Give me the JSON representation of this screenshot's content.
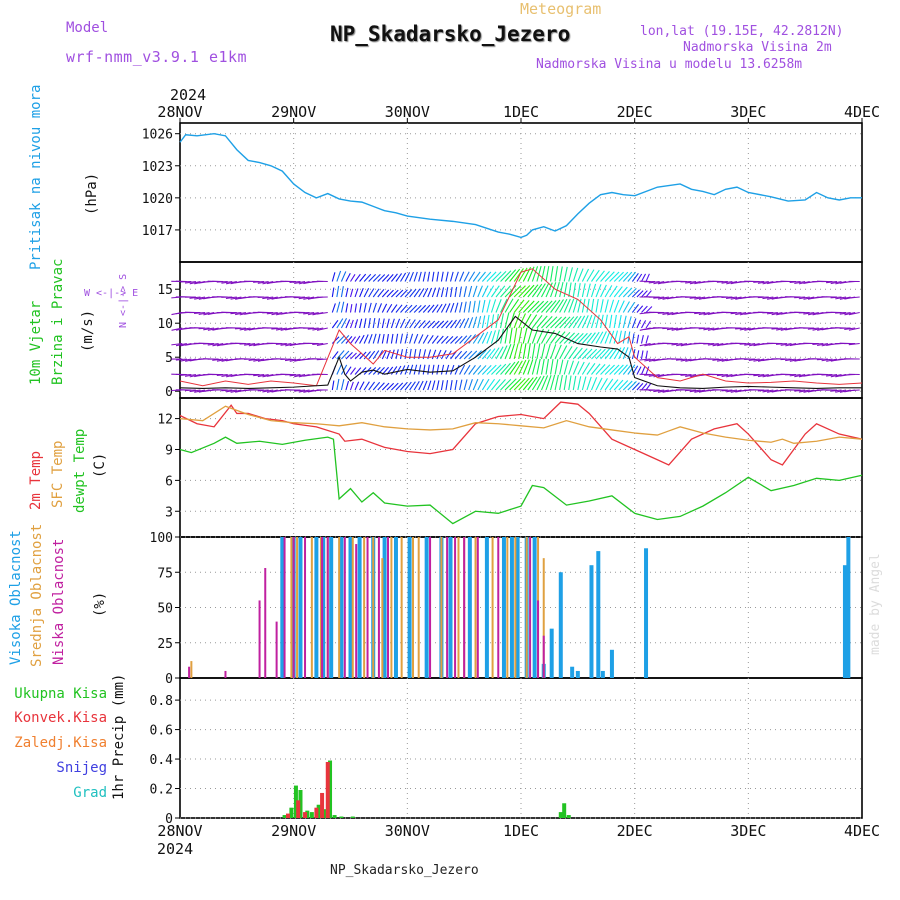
{
  "header": {
    "model_label": "Model",
    "model_name": "wrf-nmm_v3.9.1 e1km",
    "meteogram_label": "Meteogram",
    "station_title": "NP_Skadarsko_Jezero",
    "lonlat": "lon,lat (19.15E, 42.2812N)",
    "altitude": "Nadmorska Visina 2m",
    "model_altitude": "Nadmorska Visina u modelu 13.6258m",
    "footer_station": "NP_Skadarsko_Jezero",
    "watermark": "made by Angel"
  },
  "time_axis": {
    "top_year": "2024",
    "bottom_year": "2024",
    "labels": [
      "28NOV",
      "29NOV",
      "30NOV",
      "1DEC",
      "2DEC",
      "3DEC",
      "4DEC"
    ]
  },
  "panels": {
    "pressure": {
      "side_label": "Pritisak na nivou mora",
      "unit": "(hPa)"
    },
    "wind": {
      "side_label_1": "10m Vjetar",
      "side_label_2": "Brzina i Pravac",
      "unit": "(m/s)",
      "compass": "W <-|-> E",
      "compass_v": "N <-|-> S"
    },
    "temp": {
      "label_2m": "2m Temp",
      "label_sfc": "SFC Temp",
      "label_dew": "dewpt Temp",
      "unit": "(C)"
    },
    "cloud": {
      "label_high": "Visoka Oblacnost",
      "label_mid": "Srednja Oblacnost",
      "label_low": "Niska Oblacnost",
      "unit": "(%)"
    },
    "precip": {
      "legend": [
        "Ukupna Kisa",
        "Konvek.Kisa",
        "Zaledj.Kisa",
        "Snijeg",
        "Grad"
      ],
      "unit": "1hr Precip (mm)"
    }
  },
  "colors": {
    "pressure": "#1ea0e6",
    "temp2m": "#e8343c",
    "sfc": "#e0a040",
    "dew": "#22c322",
    "high": "#1ea0e6",
    "mid": "#e0a040",
    "low": "#c020a0",
    "total": "#22c322",
    "conv": "#e8343c",
    "frz": "#f08030",
    "snow": "#4040e0",
    "hail": "#20c0c0",
    "purple_text": "#a050e0",
    "meteogram_text": "#e8c070"
  },
  "chart_data": [
    {
      "type": "line",
      "title": "Pritisak na nivou mora",
      "ylabel": "(hPa)",
      "ylim": [
        1014,
        1027
      ],
      "yticks": [
        1017,
        1020,
        1023,
        1026
      ],
      "xlim_days": [
        0,
        6
      ],
      "series": [
        {
          "name": "Pritisak na nivou mora",
          "x": [
            0,
            0.05,
            0.15,
            0.3,
            0.4,
            0.5,
            0.6,
            0.7,
            0.8,
            0.9,
            1.0,
            1.1,
            1.2,
            1.3,
            1.4,
            1.5,
            1.6,
            1.7,
            1.8,
            1.9,
            2.0,
            2.2,
            2.4,
            2.6,
            2.8,
            2.9,
            3.0,
            3.05,
            3.1,
            3.2,
            3.3,
            3.4,
            3.5,
            3.6,
            3.7,
            3.8,
            3.9,
            4.0,
            4.2,
            4.4,
            4.5,
            4.6,
            4.7,
            4.8,
            4.9,
            5.0,
            5.2,
            5.35,
            5.5,
            5.6,
            5.7,
            5.8,
            5.9,
            6.0
          ],
          "y": [
            1025.2,
            1025.9,
            1025.8,
            1026.0,
            1025.8,
            1024.5,
            1023.5,
            1023.3,
            1023.0,
            1022.5,
            1021.3,
            1020.5,
            1020.0,
            1020.4,
            1019.9,
            1019.7,
            1019.6,
            1019.2,
            1018.8,
            1018.6,
            1018.3,
            1018.0,
            1017.8,
            1017.5,
            1016.8,
            1016.6,
            1016.3,
            1016.5,
            1017.0,
            1017.3,
            1016.9,
            1017.4,
            1018.5,
            1019.5,
            1020.3,
            1020.5,
            1020.3,
            1020.2,
            1021.0,
            1021.3,
            1020.8,
            1020.6,
            1020.3,
            1020.8,
            1021.0,
            1020.5,
            1020.1,
            1019.7,
            1019.8,
            1020.5,
            1020.0,
            1019.8,
            1020.0,
            1020.0
          ]
        }
      ]
    },
    {
      "type": "line",
      "title": "10m Vjetar Brzina i Pravac",
      "ylabel": "(m/s)",
      "ylim": [
        -1,
        19
      ],
      "yticks": [
        0,
        5,
        10,
        15
      ],
      "series": [
        {
          "name": "speed",
          "x": [
            0,
            0.2,
            0.4,
            0.6,
            0.8,
            1.0,
            1.2,
            1.3,
            1.4,
            1.45,
            1.5,
            1.6,
            1.7,
            1.8,
            2.0,
            2.2,
            2.4,
            2.6,
            2.8,
            2.95,
            3.1,
            3.3,
            3.5,
            3.7,
            3.85,
            3.95,
            4.0,
            4.2,
            4.4,
            4.6,
            4.8,
            5.0,
            5.2,
            5.4,
            5.6,
            5.8,
            6.0
          ],
          "y": [
            0.5,
            0.4,
            0.5,
            0.4,
            0.5,
            0.6,
            0.8,
            0.9,
            5,
            2.5,
            1.5,
            2.8,
            3.1,
            2.5,
            3.2,
            2.8,
            3.0,
            5.0,
            7.5,
            11.0,
            9.0,
            8.5,
            7.0,
            6.5,
            6.2,
            5.0,
            2.0,
            0.8,
            0.5,
            0.4,
            0.6,
            0.7,
            0.6,
            0.5,
            0.4,
            0.5,
            0.5
          ]
        },
        {
          "name": "gust",
          "x": [
            0,
            0.2,
            0.4,
            0.6,
            0.8,
            1.0,
            1.2,
            1.4,
            1.5,
            1.6,
            1.7,
            1.8,
            2.0,
            2.2,
            2.4,
            2.6,
            2.8,
            3.0,
            3.1,
            3.3,
            3.5,
            3.7,
            3.85,
            3.95,
            4.0,
            4.2,
            4.4,
            4.6,
            4.8,
            5.0,
            5.2,
            5.4,
            5.6,
            5.8,
            6.0
          ],
          "y": [
            1.5,
            0.8,
            1.5,
            1.0,
            1.5,
            1.2,
            0.8,
            9.0,
            7.0,
            5.5,
            4.0,
            6.0,
            5.0,
            5.0,
            5.5,
            8.0,
            10.5,
            17.5,
            18.0,
            15.0,
            13.5,
            10.5,
            7.0,
            8.0,
            5.0,
            2.0,
            1.5,
            2.5,
            1.5,
            1.2,
            1.3,
            1.5,
            1.2,
            1.0,
            1.2
          ]
        }
      ]
    },
    {
      "type": "line",
      "title": "Temp",
      "ylabel": "(C)",
      "ylim": [
        0.5,
        14
      ],
      "yticks": [
        3,
        6,
        9,
        12
      ],
      "series": [
        {
          "name": "2m Temp",
          "x": [
            0,
            0.15,
            0.3,
            0.45,
            0.5,
            0.6,
            0.75,
            0.9,
            1.0,
            1.2,
            1.4,
            1.45,
            1.6,
            1.8,
            2.0,
            2.2,
            2.4,
            2.6,
            2.8,
            3.0,
            3.2,
            3.35,
            3.5,
            3.6,
            3.8,
            4.0,
            4.2,
            4.3,
            4.5,
            4.7,
            4.9,
            5.0,
            5.2,
            5.3,
            5.5,
            5.6,
            5.8,
            6.0
          ],
          "y": [
            12.3,
            11.5,
            11.2,
            13.3,
            12.5,
            12.5,
            12.0,
            11.8,
            11.5,
            11.2,
            10.5,
            9.8,
            10.0,
            9.2,
            8.8,
            8.6,
            9.0,
            11.5,
            12.2,
            12.4,
            12.0,
            13.6,
            13.4,
            12.5,
            10.0,
            9.0,
            8.0,
            7.5,
            10.0,
            11.0,
            11.5,
            10.5,
            8.0,
            7.5,
            10.5,
            11.5,
            10.5,
            10.0
          ]
        },
        {
          "name": "SFC Temp",
          "x": [
            0,
            0.2,
            0.4,
            0.5,
            0.6,
            0.8,
            1.0,
            1.2,
            1.4,
            1.6,
            1.8,
            2.0,
            2.2,
            2.4,
            2.6,
            2.8,
            3.0,
            3.2,
            3.4,
            3.6,
            3.8,
            4.0,
            4.2,
            4.3,
            4.4,
            4.6,
            4.8,
            5.0,
            5.2,
            5.3,
            5.4,
            5.6,
            5.8,
            6.0
          ],
          "y": [
            12.0,
            11.8,
            13.2,
            12.8,
            12.4,
            11.8,
            11.6,
            11.5,
            11.3,
            11.6,
            11.2,
            11.0,
            10.9,
            11.0,
            11.6,
            11.5,
            11.3,
            11.1,
            11.8,
            11.2,
            10.9,
            10.6,
            10.4,
            10.8,
            11.2,
            10.6,
            10.2,
            9.9,
            9.7,
            10.0,
            9.6,
            9.8,
            10.2,
            10.0
          ]
        },
        {
          "name": "dewpt Temp",
          "x": [
            0,
            0.1,
            0.3,
            0.4,
            0.5,
            0.7,
            0.9,
            1.1,
            1.3,
            1.35,
            1.4,
            1.5,
            1.6,
            1.7,
            1.8,
            2.0,
            2.2,
            2.4,
            2.6,
            2.8,
            3.0,
            3.1,
            3.2,
            3.4,
            3.6,
            3.8,
            4.0,
            4.2,
            4.4,
            4.6,
            4.8,
            5.0,
            5.2,
            5.4,
            5.6,
            5.8,
            6.0
          ],
          "y": [
            9.0,
            8.7,
            9.6,
            10.2,
            9.6,
            9.8,
            9.5,
            9.9,
            10.2,
            10.0,
            4.2,
            5.2,
            3.9,
            4.8,
            3.8,
            3.5,
            3.6,
            1.8,
            3.0,
            2.8,
            3.5,
            5.5,
            5.3,
            3.6,
            4.0,
            4.5,
            2.8,
            2.2,
            2.5,
            3.5,
            4.8,
            6.3,
            5.0,
            5.5,
            6.2,
            6.0,
            6.5
          ]
        }
      ]
    },
    {
      "type": "bar",
      "title": "Oblacnost",
      "ylabel": "(%)",
      "ylim": [
        0,
        100
      ],
      "yticks": [
        0,
        25,
        50,
        75,
        100
      ],
      "series": [
        {
          "name": "Visoka Oblacnost",
          "x": [
            0.9,
            1.0,
            1.06,
            1.2,
            1.26,
            1.33,
            1.42,
            1.5,
            1.58,
            1.7,
            1.8,
            1.9,
            2.02,
            2.17,
            2.3,
            2.38,
            2.55,
            2.7,
            2.85,
            2.92,
            2.97,
            3.05,
            3.12,
            3.2,
            3.27,
            3.35,
            3.45,
            3.5,
            3.62,
            3.68,
            3.72,
            3.8,
            4.1,
            5.85,
            5.88
          ],
          "y": [
            100,
            100,
            100,
            100,
            100,
            100,
            100,
            100,
            100,
            100,
            100,
            100,
            100,
            100,
            100,
            100,
            100,
            100,
            100,
            100,
            100,
            100,
            100,
            10,
            35,
            75,
            8,
            5,
            80,
            90,
            5,
            20,
            92,
            80,
            100
          ]
        },
        {
          "name": "Srednja Oblacnost",
          "x": [
            0.1,
            0.98,
            1.03,
            1.16,
            1.24,
            1.3,
            1.4,
            1.52,
            1.62,
            1.7,
            1.78,
            1.86,
            1.95,
            2.05,
            2.1,
            2.3,
            2.45,
            2.5,
            2.6,
            2.75,
            2.88,
            2.95,
            3.05,
            3.15,
            3.2
          ],
          "y": [
            12,
            100,
            100,
            100,
            100,
            100,
            100,
            100,
            100,
            100,
            85,
            100,
            100,
            100,
            100,
            100,
            100,
            100,
            100,
            100,
            100,
            100,
            100,
            100,
            85
          ]
        },
        {
          "name": "Niska Oblacnost",
          "x": [
            0.08,
            0.4,
            0.7,
            0.75,
            0.85,
            0.92,
            1.0,
            1.1,
            1.25,
            1.3,
            1.45,
            1.55,
            1.65,
            1.75,
            1.83,
            2.2,
            2.35,
            2.42,
            2.5,
            2.62,
            2.8,
            3.08,
            3.15,
            3.2
          ],
          "y": [
            8,
            5,
            55,
            78,
            40,
            100,
            100,
            100,
            100,
            100,
            100,
            95,
            100,
            100,
            100,
            100,
            100,
            100,
            100,
            100,
            100,
            100,
            55,
            30
          ]
        }
      ]
    },
    {
      "type": "bar",
      "title": "1hr Precip",
      "ylabel": "1hr Precip (mm)",
      "ylim": [
        0,
        0.95
      ],
      "yticks": [
        0,
        0.2,
        0.4,
        0.6,
        0.8
      ],
      "series": [
        {
          "name": "Ukupna Kisa",
          "x": [
            0.92,
            0.98,
            1.02,
            1.06,
            1.12,
            1.16,
            1.22,
            1.27,
            1.32,
            1.36,
            1.42,
            1.52,
            3.35,
            3.38,
            3.42
          ],
          "y": [
            0.02,
            0.07,
            0.22,
            0.19,
            0.05,
            0.04,
            0.09,
            0.06,
            0.39,
            0.02,
            0.01,
            0.01,
            0.04,
            0.1,
            0.02
          ]
        },
        {
          "name": "Konvek.Kisa",
          "x": [
            0.95,
            1.04,
            1.1,
            1.2,
            1.25,
            1.3
          ],
          "y": [
            0.03,
            0.12,
            0.04,
            0.07,
            0.17,
            0.38
          ]
        },
        {
          "name": "Zaledj.Kisa",
          "x": [],
          "y": []
        },
        {
          "name": "Snijeg",
          "x": [],
          "y": []
        },
        {
          "name": "Grad",
          "x": [],
          "y": []
        }
      ]
    }
  ]
}
